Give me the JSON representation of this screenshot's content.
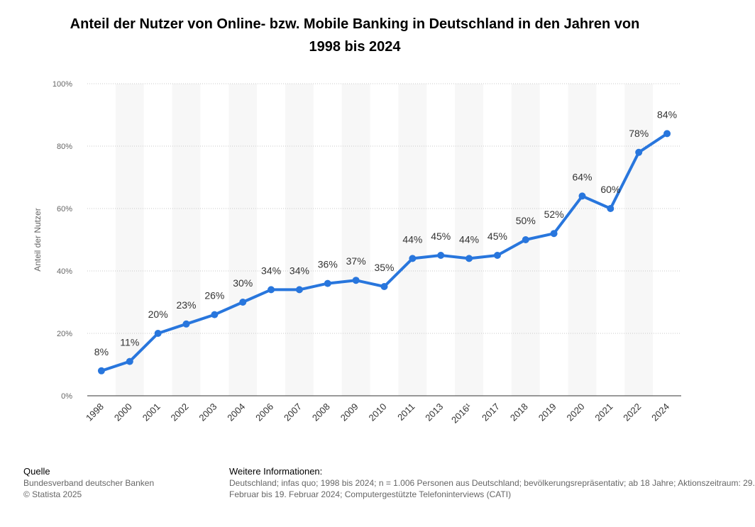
{
  "header": {
    "title_line1": "Anteil der Nutzer von Online- bzw. Mobile Banking in Deutschland in den Jahren von",
    "title_line2": "1998 bis 2024"
  },
  "chart_data": {
    "type": "line",
    "title": "Anteil der Nutzer von Online- bzw. Mobile Banking in Deutschland in den Jahren von 1998 bis 2024",
    "xlabel": "",
    "ylabel": "Anteil der Nutzer",
    "ylim": [
      0,
      100
    ],
    "yticks": [
      "0%",
      "20%",
      "40%",
      "60%",
      "80%",
      "100%"
    ],
    "grid": true,
    "color": "#2876dd",
    "categories": [
      "1998",
      "2000",
      "2001",
      "2002",
      "2003",
      "2004",
      "2006",
      "2007",
      "2008",
      "2009",
      "2010",
      "2011",
      "2013",
      "2016¹",
      "2017",
      "2018",
      "2019",
      "2020",
      "2021",
      "2022",
      "2024"
    ],
    "values": [
      8,
      11,
      20,
      23,
      26,
      30,
      34,
      34,
      36,
      37,
      35,
      44,
      45,
      44,
      45,
      50,
      52,
      64,
      60,
      78,
      84
    ],
    "labels": [
      "8%",
      "11%",
      "20%",
      "23%",
      "26%",
      "30%",
      "34%",
      "34%",
      "36%",
      "37%",
      "35%",
      "44%",
      "45%",
      "44%",
      "45%",
      "50%",
      "52%",
      "64%",
      "60%",
      "78%",
      "84%"
    ]
  },
  "footer": {
    "source_heading": "Quelle",
    "source_line1": "Bundesverband deutscher Banken",
    "source_line2": "© Statista 2025",
    "info_heading": "Weitere Informationen:",
    "info_line1": "Deutschland; infas quo; 1998 bis 2024; n = 1.006 Personen aus Deutschland; bevölkerungsrepräsentativ; ab 18 Jahre; Aktionszeitraum: 29.",
    "info_line2": "Februar bis 19. Februar 2024; Computergestützte Telefoninterviews (CATI)"
  }
}
